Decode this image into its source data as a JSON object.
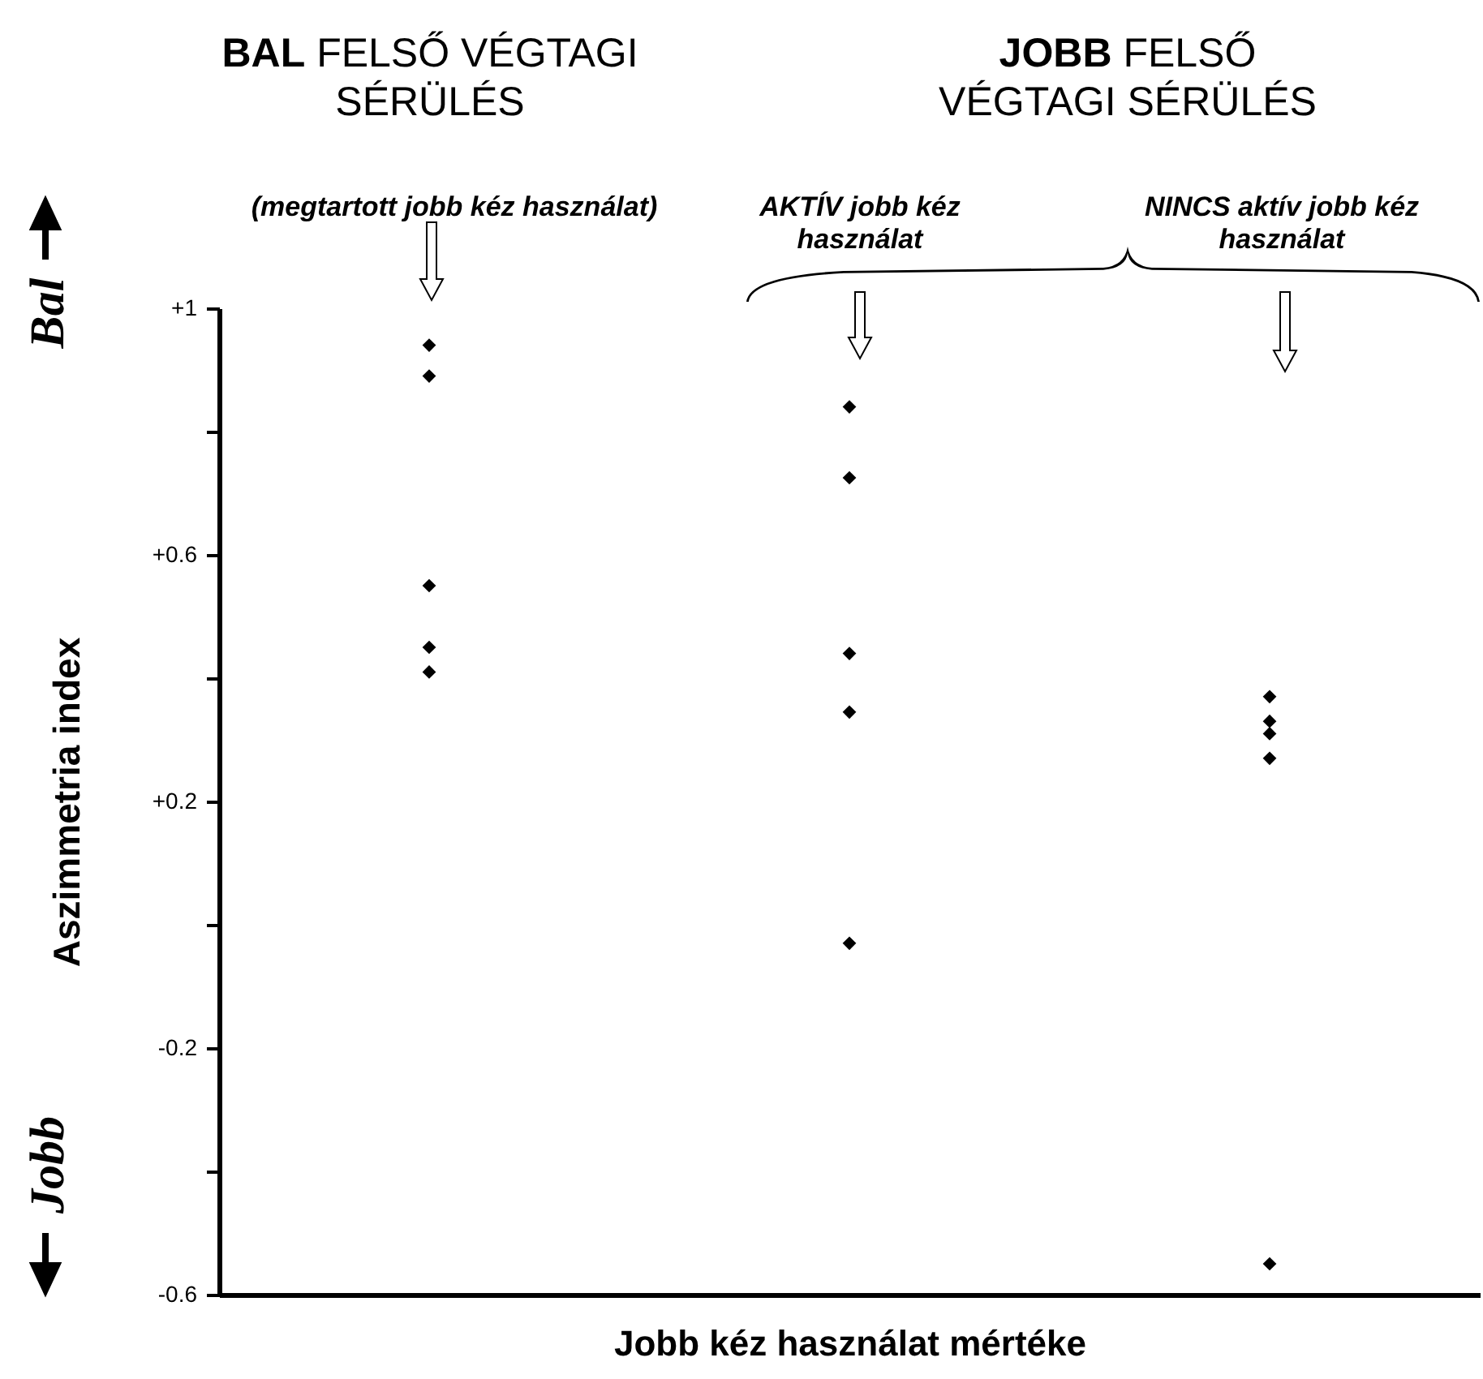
{
  "chart_data": {
    "type": "scatter",
    "xlabel": "Jobb kéz használat mértéke",
    "ylabel": "Aszimmetria index",
    "categories": [
      null,
      null,
      null
    ],
    "series": [
      {
        "color": "#000000",
        "values": [
          0.94,
          0.84,
          0.37
        ]
      },
      {
        "color": "#000000",
        "values": [
          0.89,
          0.725,
          0.33
        ]
      },
      {
        "color": "#000000",
        "values": [
          0.55,
          0.44,
          0.31
        ]
      },
      {
        "color": "#000000",
        "values": [
          0.45,
          0.345,
          0.27
        ]
      },
      {
        "color": "#000000",
        "values": [
          0.41,
          -0.03,
          -0.55
        ]
      }
    ],
    "ylim": [
      -0.6,
      1
    ],
    "yticks": [
      {
        "value": -0.6,
        "label": "-0.6"
      },
      {
        "value": -0.4,
        "label": null
      },
      {
        "value": -0.2,
        "label": "-0.2"
      },
      {
        "value": 0,
        "label": null
      },
      {
        "value": 0.2,
        "label": "+0.2"
      },
      {
        "value": 0.4,
        "label": null
      },
      {
        "value": 0.6,
        "label": "+0.6"
      },
      {
        "value": 0.8,
        "label": null
      },
      {
        "value": 1,
        "label": "+1"
      }
    ],
    "tick_labels": "y",
    "marker": "diamond",
    "grid": false,
    "annotations": [
      "BAL FELSŐ VÉGTAGI SÉRÜLÉS",
      "JOBB FELSŐ VÉGTAGI SÉRÜLÉS",
      "(megtartott jobb kéz használat)",
      "AKTÍV jobb kéz használat",
      "NINCS aktív jobb kéz használat",
      "Bal",
      "Jobb"
    ]
  }
}
